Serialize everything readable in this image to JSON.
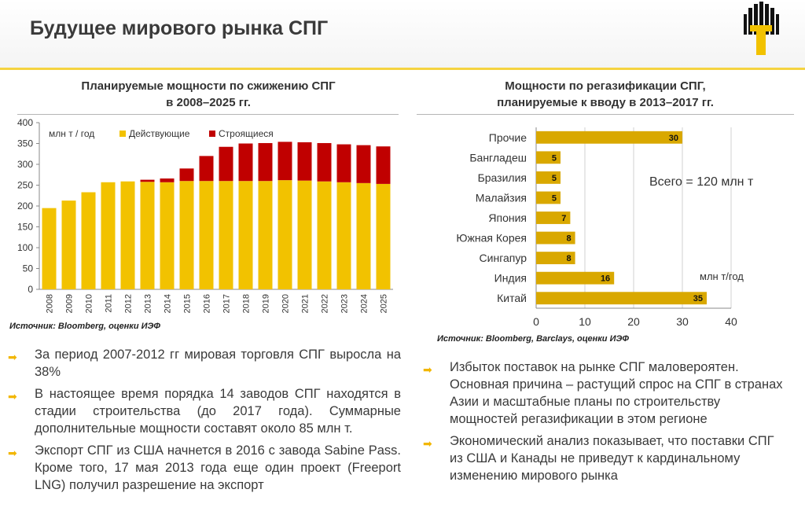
{
  "header": {
    "title": "Будущее мирового рынка СПГ",
    "logo_icon": "rosneft-logo-icon",
    "accent_color": "#f5d340"
  },
  "left_chart": {
    "title_line1": "Планируемые мощности по сжижению СПГ",
    "title_line2": "в 2008–2025 гг.",
    "source": "Источник: Bloomberg, оценки ИЭФ"
  },
  "right_chart": {
    "title_line1": "Мощности по регазификации СПГ,",
    "title_line2": "планируемые к вводу в 2013–2017 гг.",
    "source": "Источник: Bloomberg, Barclays, оценки ИЭФ",
    "total_note": "Всего = 120 млн т",
    "unit_note": "млн т/год"
  },
  "chart_data": [
    {
      "type": "bar",
      "stacked": true,
      "title": "Планируемые мощности по сжижению СПГ в 2008–2025 гг.",
      "unit_label": "млн т / год",
      "categories": [
        "2008",
        "2009",
        "2010",
        "2011",
        "2012",
        "2013",
        "2014",
        "2015",
        "2016",
        "2017",
        "2018",
        "2019",
        "2020",
        "2021",
        "2022",
        "2023",
        "2024",
        "2025"
      ],
      "series": [
        {
          "name": "Действующие",
          "color": "#f2c200",
          "values": [
            195,
            213,
            233,
            257,
            259,
            258,
            257,
            260,
            260,
            260,
            260,
            260,
            262,
            261,
            259,
            257,
            255,
            253
          ]
        },
        {
          "name": "Строящиеся",
          "color": "#c00000",
          "values": [
            0,
            0,
            0,
            0,
            0,
            5,
            9,
            30,
            60,
            82,
            90,
            91,
            92,
            92,
            92,
            91,
            91,
            90
          ]
        }
      ],
      "ylim": [
        0,
        400
      ],
      "yticks": [
        0,
        50,
        100,
        150,
        200,
        250,
        300,
        350,
        400
      ],
      "grid": false,
      "legend_position": "top-left"
    },
    {
      "type": "bar",
      "orientation": "horizontal",
      "title": "Мощности по регазификации СПГ, планируемые к вводу в 2013–2017 гг.",
      "categories": [
        "Прочие",
        "Бангладеш",
        "Бразилия",
        "Малайзия",
        "Япония",
        "Южная Корея",
        "Сингапур",
        "Индия",
        "Китай"
      ],
      "values": [
        30,
        5,
        5,
        5,
        7,
        8,
        8,
        16,
        35
      ],
      "color": "#d9a800",
      "xlim": [
        0,
        40
      ],
      "xticks": [
        0,
        10,
        20,
        30,
        40
      ],
      "grid": true,
      "unit": "млн т/год"
    }
  ],
  "left_bullets": [
    "За период 2007-2012 гг мировая торговля СПГ выросла на 38%",
    "В настоящее время порядка 14 заводов СПГ находятся в стадии строительства (до 2017 года). Суммарные дополнительные мощности составят около 85 млн т.",
    "Экспорт СПГ из США начнется в 2016 с завода Sabine Pass. Кроме того, 17 мая 2013 года еще один проект (Freeport LNG) получил разрешение на экспорт"
  ],
  "right_bullets": [
    "Избыток поставок на рынке СПГ маловероятен. Основная причина – растущий спрос на СПГ в странах Азии и масштабные планы по строительству мощностей регазификации в этом регионе",
    "Экономический анализ показывает, что поставки СПГ из США и Канады не приведут к кардинальному изменению мирового рынка"
  ],
  "bullet_icon": "arrow-bullet-icon"
}
